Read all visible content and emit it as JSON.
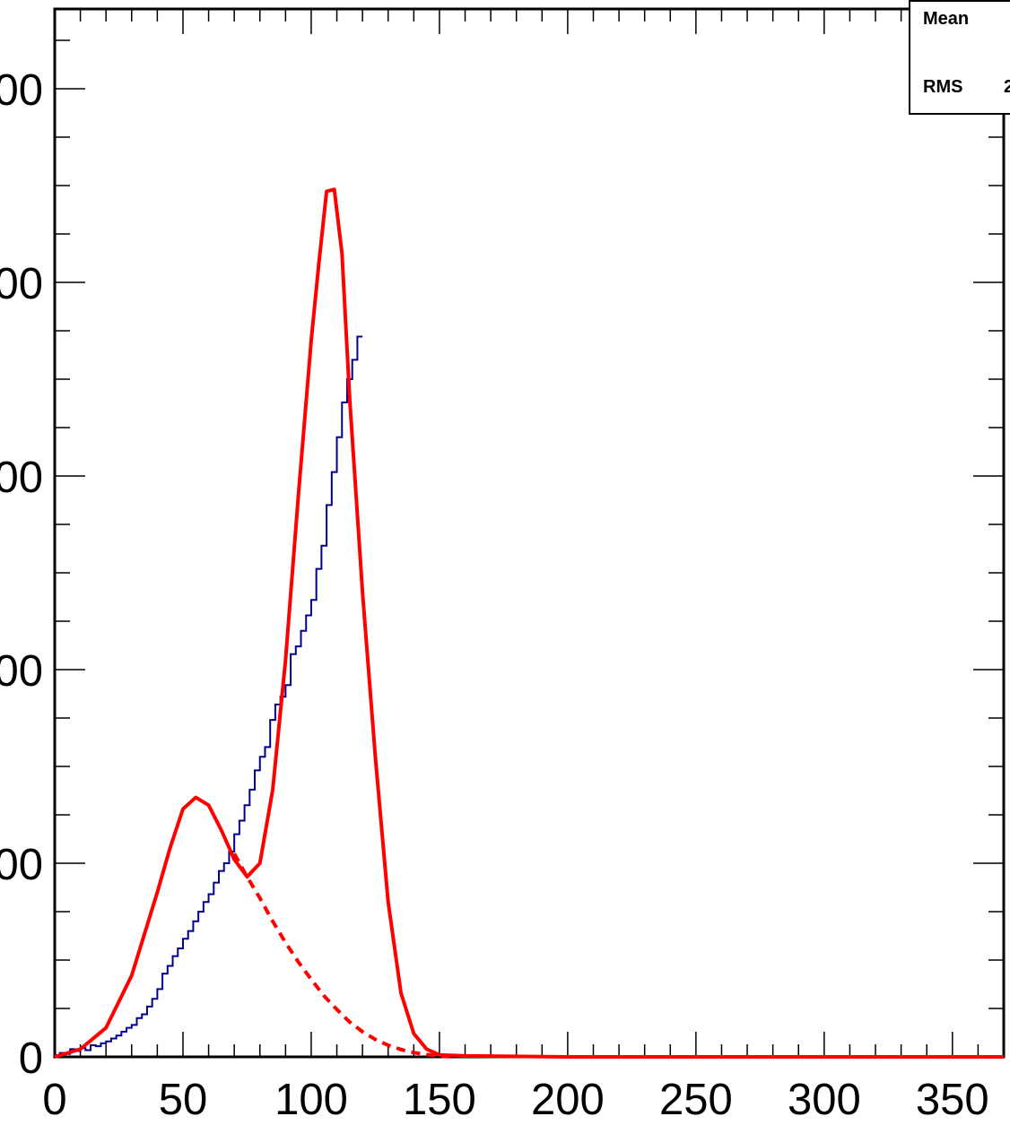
{
  "chart_data": {
    "type": "histogram",
    "title": "",
    "xlabel": "",
    "ylabel": "",
    "xlim": [
      0,
      370
    ],
    "ylim": [
      0,
      5000
    ],
    "x_ticks": [
      "0",
      "50",
      "100",
      "150",
      "200",
      "250",
      "300",
      "350"
    ],
    "y_ticks": [
      "0",
      "00",
      "00",
      "00",
      "00",
      "00"
    ],
    "grid": false,
    "bin_width": 2,
    "histogram_series": {
      "name": "",
      "color": "#00008b",
      "bins": [
        [
          0,
          10
        ],
        [
          2,
          20
        ],
        [
          4,
          15
        ],
        [
          6,
          40
        ],
        [
          8,
          30
        ],
        [
          10,
          45
        ],
        [
          12,
          35
        ],
        [
          14,
          60
        ],
        [
          16,
          55
        ],
        [
          18,
          70
        ],
        [
          20,
          80
        ],
        [
          22,
          95
        ],
        [
          24,
          110
        ],
        [
          26,
          130
        ],
        [
          28,
          150
        ],
        [
          30,
          165
        ],
        [
          32,
          200
        ],
        [
          34,
          220
        ],
        [
          36,
          260
        ],
        [
          38,
          300
        ],
        [
          40,
          350
        ],
        [
          42,
          430
        ],
        [
          44,
          470
        ],
        [
          46,
          520
        ],
        [
          48,
          560
        ],
        [
          50,
          610
        ],
        [
          52,
          650
        ],
        [
          54,
          700
        ],
        [
          56,
          750
        ],
        [
          58,
          800
        ],
        [
          60,
          840
        ],
        [
          62,
          900
        ],
        [
          64,
          960
        ],
        [
          66,
          1000
        ],
        [
          68,
          1060
        ],
        [
          70,
          1150
        ],
        [
          72,
          1220
        ],
        [
          74,
          1300
        ],
        [
          76,
          1380
        ],
        [
          78,
          1480
        ],
        [
          80,
          1550
        ],
        [
          82,
          1600
        ],
        [
          84,
          1740
        ],
        [
          86,
          1820
        ],
        [
          88,
          1860
        ],
        [
          90,
          1920
        ],
        [
          92,
          2080
        ],
        [
          94,
          2120
        ],
        [
          96,
          2200
        ],
        [
          98,
          2280
        ],
        [
          100,
          2360
        ],
        [
          102,
          2520
        ],
        [
          104,
          2640
        ],
        [
          106,
          2850
        ],
        [
          108,
          3020
        ],
        [
          110,
          3200
        ],
        [
          112,
          3380
        ],
        [
          114,
          3500
        ],
        [
          116,
          3600
        ],
        [
          118,
          3720
        ]
      ]
    },
    "stats_box": {
      "mean_label": "Mean",
      "mean_value": "",
      "rms_label": "RMS",
      "rms_value": "2"
    },
    "fit_total": {
      "color": "#ff0000",
      "style": "solid",
      "x": [
        0,
        10,
        20,
        30,
        40,
        45,
        50,
        55,
        60,
        65,
        70,
        75,
        80,
        85,
        90,
        95,
        100,
        103,
        106,
        109,
        112,
        115,
        120,
        125,
        130,
        135,
        140,
        145,
        150,
        160,
        200,
        250,
        300,
        370
      ],
      "y": [
        0,
        40,
        150,
        420,
        850,
        1080,
        1280,
        1340,
        1300,
        1170,
        1020,
        930,
        1000,
        1380,
        2050,
        2900,
        3700,
        4100,
        4470,
        4480,
        4150,
        3400,
        2400,
        1550,
        800,
        330,
        120,
        40,
        10,
        5,
        0,
        0,
        0,
        0
      ]
    },
    "fit_background": {
      "color": "#ff0000",
      "style": "dashed",
      "x": [
        70,
        75,
        80,
        85,
        90,
        95,
        100,
        105,
        110,
        115,
        120,
        125,
        130,
        135,
        140,
        145,
        150,
        155
      ],
      "y": [
        1050,
        930,
        820,
        700,
        590,
        490,
        400,
        315,
        245,
        180,
        130,
        90,
        60,
        38,
        22,
        12,
        5,
        0
      ]
    }
  }
}
